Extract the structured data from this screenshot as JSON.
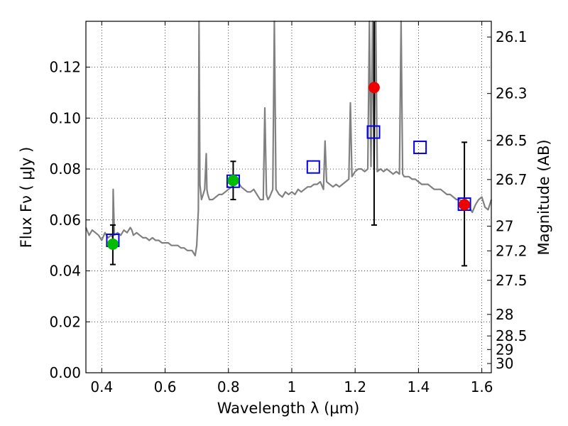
{
  "chart_data": {
    "type": "scatter",
    "title": "",
    "xlabel": "Wavelength  λ (μm)",
    "ylabel": "Flux  Fν  ( μJy )",
    "y2label": "Magnitude (AB)",
    "xlim": [
      0.35,
      1.63
    ],
    "ylim": [
      0.0,
      0.138
    ],
    "grid": true,
    "xticks": [
      {
        "value": 0.4,
        "label": "0.4"
      },
      {
        "value": 0.6,
        "label": "0.6"
      },
      {
        "value": 0.8,
        "label": "0.8"
      },
      {
        "value": 1.0,
        "label": "1"
      },
      {
        "value": 1.2,
        "label": "1.2"
      },
      {
        "value": 1.4,
        "label": "1.4"
      },
      {
        "value": 1.6,
        "label": "1.6"
      }
    ],
    "yticks": [
      {
        "value": 0.0,
        "label": "0.00"
      },
      {
        "value": 0.02,
        "label": "0.02"
      },
      {
        "value": 0.04,
        "label": "0.04"
      },
      {
        "value": 0.06,
        "label": "0.06"
      },
      {
        "value": 0.08,
        "label": "0.08"
      },
      {
        "value": 0.1,
        "label": "0.10"
      },
      {
        "value": 0.12,
        "label": "0.12"
      }
    ],
    "y2ticks": [
      {
        "value": 26.1,
        "label": "26.1"
      },
      {
        "value": 26.3,
        "label": "26.3"
      },
      {
        "value": 26.5,
        "label": "26.5"
      },
      {
        "value": 26.7,
        "label": "26.7"
      },
      {
        "value": 27.0,
        "label": "27"
      },
      {
        "value": 27.2,
        "label": "27.2"
      },
      {
        "value": 27.5,
        "label": "27.5"
      },
      {
        "value": 28.0,
        "label": "28"
      },
      {
        "value": 28.5,
        "label": "28.5"
      },
      {
        "value": 29.0,
        "label": "29"
      },
      {
        "value": 30.0,
        "label": "30"
      }
    ],
    "series": [
      {
        "kind": "model-spectrum",
        "color": "#808080",
        "x": [
          0.35,
          0.36,
          0.37,
          0.38,
          0.39,
          0.4,
          0.41,
          0.42,
          0.43,
          0.435,
          0.436,
          0.44,
          0.45,
          0.46,
          0.47,
          0.48,
          0.49,
          0.495,
          0.5,
          0.51,
          0.52,
          0.53,
          0.54,
          0.55,
          0.56,
          0.57,
          0.58,
          0.59,
          0.6,
          0.61,
          0.62,
          0.63,
          0.64,
          0.65,
          0.66,
          0.67,
          0.68,
          0.685,
          0.69,
          0.695,
          0.7,
          0.705,
          0.707,
          0.71,
          0.715,
          0.72,
          0.725,
          0.73,
          0.732,
          0.735,
          0.74,
          0.75,
          0.76,
          0.77,
          0.78,
          0.79,
          0.8,
          0.81,
          0.82,
          0.83,
          0.84,
          0.85,
          0.86,
          0.87,
          0.88,
          0.89,
          0.9,
          0.91,
          0.915,
          0.92,
          0.925,
          0.93,
          0.94,
          0.945,
          0.95,
          0.955,
          0.96,
          0.97,
          0.98,
          0.99,
          1.0,
          1.01,
          1.02,
          1.03,
          1.04,
          1.05,
          1.06,
          1.07,
          1.08,
          1.09,
          1.1,
          1.105,
          1.11,
          1.12,
          1.13,
          1.14,
          1.15,
          1.16,
          1.17,
          1.18,
          1.185,
          1.19,
          1.2,
          1.21,
          1.22,
          1.23,
          1.24,
          1.245,
          1.25,
          1.255,
          1.26,
          1.265,
          1.27,
          1.28,
          1.29,
          1.3,
          1.31,
          1.32,
          1.33,
          1.34,
          1.345,
          1.35,
          1.355,
          1.36,
          1.37,
          1.38,
          1.39,
          1.4,
          1.41,
          1.42,
          1.43,
          1.44,
          1.45,
          1.46,
          1.47,
          1.48,
          1.49,
          1.5,
          1.51,
          1.52,
          1.53,
          1.54,
          1.55,
          1.56,
          1.57,
          1.58,
          1.59,
          1.6,
          1.61,
          1.62,
          1.63
        ],
        "y": [
          0.057,
          0.054,
          0.056,
          0.055,
          0.054,
          0.052,
          0.055,
          0.053,
          0.054,
          0.053,
          0.072,
          0.054,
          0.055,
          0.054,
          0.056,
          0.055,
          0.057,
          0.056,
          0.054,
          0.055,
          0.054,
          0.053,
          0.053,
          0.052,
          0.053,
          0.052,
          0.052,
          0.051,
          0.051,
          0.051,
          0.05,
          0.05,
          0.05,
          0.049,
          0.049,
          0.048,
          0.048,
          0.048,
          0.047,
          0.046,
          0.05,
          0.064,
          0.138,
          0.074,
          0.068,
          0.07,
          0.072,
          0.086,
          0.072,
          0.07,
          0.068,
          0.068,
          0.069,
          0.07,
          0.07,
          0.071,
          0.072,
          0.073,
          0.074,
          0.075,
          0.073,
          0.072,
          0.071,
          0.071,
          0.072,
          0.07,
          0.068,
          0.068,
          0.104,
          0.07,
          0.068,
          0.069,
          0.072,
          0.138,
          0.072,
          0.071,
          0.07,
          0.069,
          0.071,
          0.07,
          0.071,
          0.07,
          0.072,
          0.071,
          0.072,
          0.073,
          0.073,
          0.074,
          0.074,
          0.075,
          0.072,
          0.091,
          0.075,
          0.074,
          0.073,
          0.074,
          0.073,
          0.074,
          0.075,
          0.076,
          0.106,
          0.077,
          0.079,
          0.08,
          0.08,
          0.079,
          0.08,
          0.138,
          0.081,
          0.138,
          0.08,
          0.138,
          0.079,
          0.08,
          0.079,
          0.08,
          0.079,
          0.078,
          0.079,
          0.078,
          0.138,
          0.078,
          0.077,
          0.077,
          0.077,
          0.076,
          0.076,
          0.075,
          0.074,
          0.074,
          0.074,
          0.073,
          0.072,
          0.072,
          0.072,
          0.071,
          0.07,
          0.07,
          0.069,
          0.068,
          0.068,
          0.067,
          0.068,
          0.065,
          0.063,
          0.066,
          0.068,
          0.069,
          0.065,
          0.064,
          0.068
        ]
      },
      {
        "kind": "photometry-upper-errorbar",
        "name": "",
        "points": [
          {
            "x": 0.435,
            "y": 0.0505,
            "ylow": 0.0425,
            "yhigh": 0.058,
            "color": "#00bb00"
          },
          {
            "x": 0.815,
            "y": 0.0755,
            "ylow": 0.068,
            "yhigh": 0.083,
            "color": "#00bb00"
          },
          {
            "x": 1.26,
            "y": 0.112,
            "ylow": 0.058,
            "yhigh": 0.138,
            "color": "#ee0000"
          },
          {
            "x": 1.545,
            "y": 0.066,
            "ylow": 0.042,
            "yhigh": 0.0905,
            "color": "#ee0000"
          }
        ]
      },
      {
        "kind": "model-photometry-squares",
        "color": "#0000ee",
        "points": [
          {
            "x": 0.435,
            "y": 0.052
          },
          {
            "x": 0.815,
            "y": 0.0752
          },
          {
            "x": 1.068,
            "y": 0.0808
          },
          {
            "x": 1.258,
            "y": 0.0945
          },
          {
            "x": 1.405,
            "y": 0.0885
          },
          {
            "x": 1.545,
            "y": 0.0662
          }
        ]
      }
    ]
  }
}
